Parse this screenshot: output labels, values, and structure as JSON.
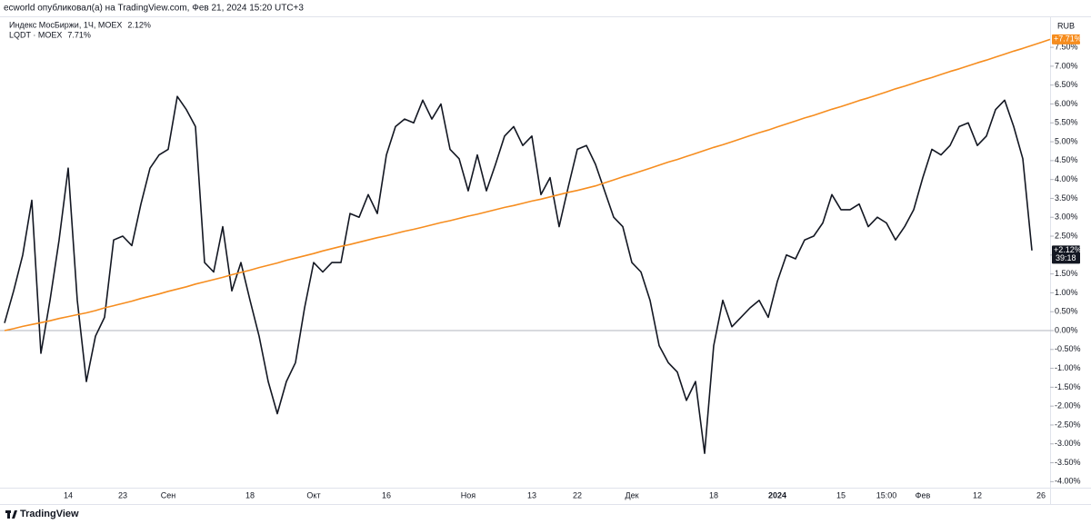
{
  "chart_data": {
    "type": "line",
    "title": "ecworld опубликовал(а) на TradingView.com, Фев 21, 2024 15:20 UTC+3",
    "axis_unit": "RUB",
    "brand": "TradingView",
    "categories": [
      null,
      null,
      null,
      null,
      null,
      null,
      null,
      "14",
      null,
      null,
      null,
      null,
      null,
      "23",
      null,
      null,
      null,
      null,
      "Сен",
      null,
      null,
      null,
      null,
      null,
      null,
      null,
      null,
      "18",
      null,
      null,
      null,
      null,
      null,
      null,
      "Окт",
      null,
      null,
      null,
      null,
      null,
      null,
      null,
      "16",
      null,
      null,
      null,
      null,
      null,
      null,
      null,
      null,
      "Ноя",
      null,
      null,
      null,
      null,
      null,
      null,
      "13",
      null,
      null,
      null,
      null,
      "22",
      null,
      null,
      null,
      null,
      null,
      "Дек",
      null,
      null,
      null,
      null,
      null,
      null,
      null,
      null,
      "18",
      null,
      null,
      null,
      null,
      null,
      null,
      "2024",
      null,
      null,
      null,
      null,
      null,
      null,
      "15",
      null,
      null,
      null,
      null,
      "15:00",
      null,
      null,
      null,
      "Фев",
      null,
      null,
      null,
      null,
      null,
      "12",
      null,
      null,
      null,
      null,
      null,
      null,
      "26",
      null
    ],
    "series": [
      {
        "name": "Индекс МосБиржи, 1Ч, MOEX",
        "color": "#131722",
        "last_label": "2.12%",
        "axis_label": "+2.12%",
        "countdown": "39:18",
        "values": [
          0.2,
          1.05,
          2.0,
          3.45,
          -0.6,
          0.8,
          2.4,
          4.3,
          0.8,
          -1.35,
          -0.15,
          0.35,
          2.4,
          2.5,
          2.25,
          3.35,
          4.3,
          4.65,
          4.8,
          6.2,
          5.85,
          5.4,
          1.8,
          1.55,
          2.75,
          1.05,
          1.8,
          0.8,
          -0.15,
          -1.35,
          -2.2,
          -1.35,
          -0.85,
          0.6,
          1.8,
          1.55,
          1.8,
          1.8,
          3.1,
          3.0,
          3.6,
          3.1,
          4.65,
          5.4,
          5.6,
          5.5,
          6.1,
          5.6,
          6.0,
          4.8,
          4.55,
          3.7,
          4.65,
          3.7,
          4.4,
          5.15,
          5.4,
          4.9,
          5.15,
          3.6,
          4.05,
          2.75,
          3.8,
          4.8,
          4.9,
          4.4,
          3.7,
          3.0,
          2.75,
          1.8,
          1.55,
          0.8,
          -0.4,
          -0.85,
          -1.1,
          -1.85,
          -1.35,
          -3.25,
          -0.4,
          0.8,
          0.1,
          0.35,
          0.6,
          0.8,
          0.35,
          1.3,
          2.0,
          1.9,
          2.4,
          2.5,
          2.85,
          3.6,
          3.2,
          3.2,
          3.35,
          2.75,
          3.0,
          2.85,
          2.4,
          2.75,
          3.2,
          4.05,
          4.8,
          4.65,
          4.9,
          5.4,
          5.5,
          4.9,
          5.15,
          5.85,
          6.1,
          5.4,
          4.55,
          2.12,
          null,
          null
        ]
      },
      {
        "name": "LQDT · MOEX",
        "color": "#f68d1f",
        "last_label": "7.71%",
        "axis_label": "+7.71%",
        "values": [
          0,
          0.05,
          0.11,
          0.16,
          0.21,
          0.26,
          0.32,
          0.37,
          0.42,
          0.47,
          0.53,
          0.6,
          0.66,
          0.72,
          0.78,
          0.85,
          0.91,
          0.97,
          1.04,
          1.1,
          1.16,
          1.23,
          1.29,
          1.35,
          1.41,
          1.48,
          1.54,
          1.6,
          1.67,
          1.73,
          1.79,
          1.86,
          1.92,
          1.98,
          2.04,
          2.11,
          2.17,
          2.23,
          2.28,
          2.34,
          2.4,
          2.46,
          2.51,
          2.57,
          2.63,
          2.68,
          2.74,
          2.8,
          2.86,
          2.91,
          2.97,
          3.03,
          3.08,
          3.14,
          3.2,
          3.26,
          3.31,
          3.37,
          3.43,
          3.48,
          3.54,
          3.6,
          3.66,
          3.71,
          3.77,
          3.83,
          3.91,
          3.99,
          4.07,
          4.14,
          4.22,
          4.3,
          4.38,
          4.46,
          4.53,
          4.61,
          4.69,
          4.77,
          4.85,
          4.92,
          5.0,
          5.08,
          5.16,
          5.24,
          5.31,
          5.39,
          5.47,
          5.55,
          5.63,
          5.7,
          5.78,
          5.86,
          5.93,
          6.01,
          6.09,
          6.16,
          6.24,
          6.32,
          6.4,
          6.47,
          6.55,
          6.63,
          6.7,
          6.78,
          6.86,
          6.93,
          7.01,
          7.09,
          7.16,
          7.24,
          7.32,
          7.4,
          7.47,
          7.55,
          7.63,
          7.71
        ]
      }
    ],
    "ylim": [
      -4.16,
      8.32
    ],
    "yticks": [
      {
        "value": -4,
        "label": "-4.00%"
      },
      {
        "value": -3.5,
        "label": "-3.50%"
      },
      {
        "value": -3,
        "label": "-3.00%"
      },
      {
        "value": -2.5,
        "label": "-2.50%"
      },
      {
        "value": -2,
        "label": "-2.00%"
      },
      {
        "value": -1.5,
        "label": "-1.50%"
      },
      {
        "value": -1,
        "label": "-1.00%"
      },
      {
        "value": -0.5,
        "label": "-0.50%"
      },
      {
        "value": 0,
        "label": "0.00%"
      },
      {
        "value": 0.5,
        "label": "0.50%"
      },
      {
        "value": 1,
        "label": "1.00%"
      },
      {
        "value": 1.5,
        "label": "1.50%"
      },
      {
        "value": 2,
        "label": "2.00%"
      },
      {
        "value": 2.5,
        "label": "2.50%"
      },
      {
        "value": 3,
        "label": "3.00%"
      },
      {
        "value": 3.5,
        "label": "3.50%"
      },
      {
        "value": 4,
        "label": "4.00%"
      },
      {
        "value": 4.5,
        "label": "4.50%"
      },
      {
        "value": 5,
        "label": "5.00%"
      },
      {
        "value": 5.5,
        "label": "5.50%"
      },
      {
        "value": 6,
        "label": "6.00%"
      },
      {
        "value": 6.5,
        "label": "6.50%"
      },
      {
        "value": 7,
        "label": "7.00%"
      },
      {
        "value": 7.5,
        "label": "7.50%"
      }
    ],
    "grid": false,
    "zero_line": true
  }
}
